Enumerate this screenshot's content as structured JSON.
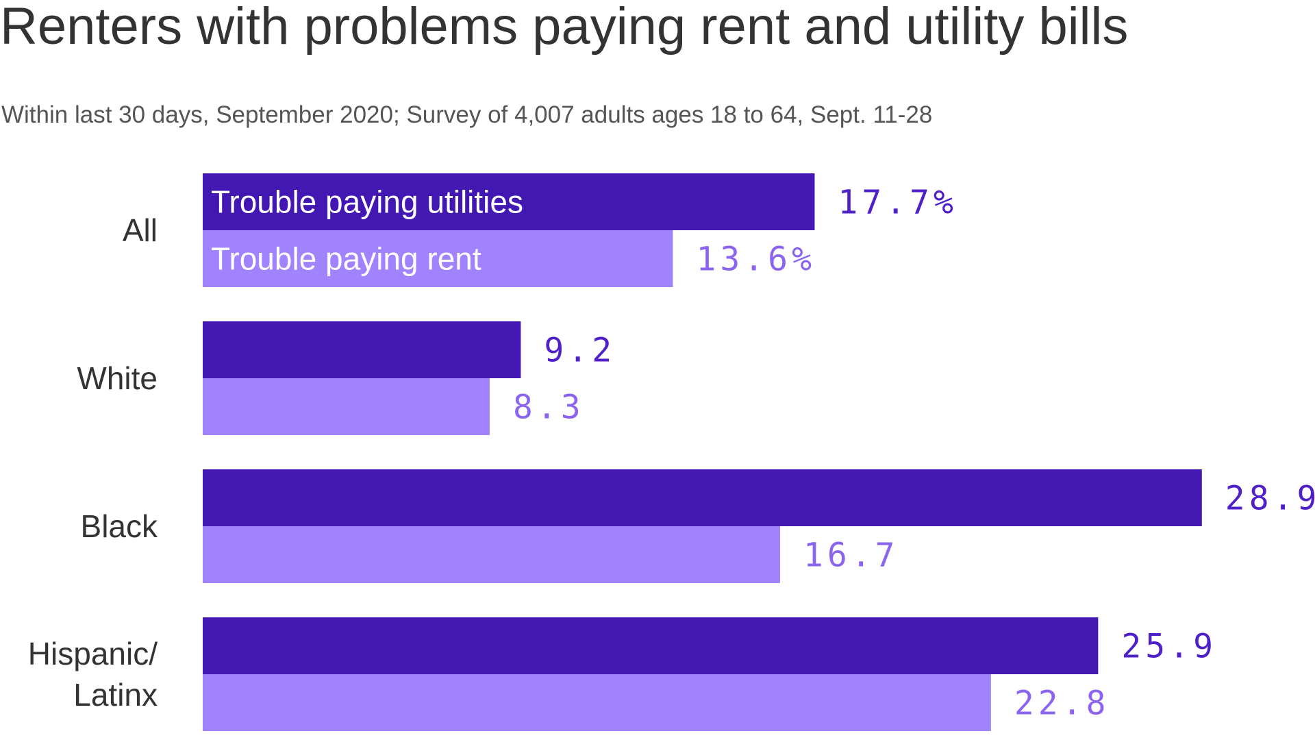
{
  "chart_data": {
    "type": "bar",
    "orientation": "horizontal",
    "title": "Renters with problems paying rent and utility bills",
    "subtitle": "Within last 30 days, September 2020; Survey of 4,007 adults ages 18 to 64, Sept. 11-28",
    "categories": [
      "All",
      "White",
      "Black",
      "Hispanic/ Latinx"
    ],
    "series": [
      {
        "name": "Trouble paying utilities",
        "values": [
          17.7,
          9.2,
          28.9,
          25.9
        ],
        "labels": [
          "17.7%",
          "9.2",
          "28.9",
          "25.9"
        ],
        "color": "#4318b2",
        "label_color": "#4f1fc8"
      },
      {
        "name": "Trouble paying rent",
        "values": [
          13.6,
          8.3,
          16.7,
          22.8
        ],
        "labels": [
          "13.6%",
          "8.3",
          "16.7",
          "22.8"
        ],
        "color": "#a283ff",
        "label_color": "#8b64f2"
      }
    ],
    "xlim": [
      0,
      29.3
    ],
    "grid": false,
    "legend": "inside-first-bars"
  }
}
